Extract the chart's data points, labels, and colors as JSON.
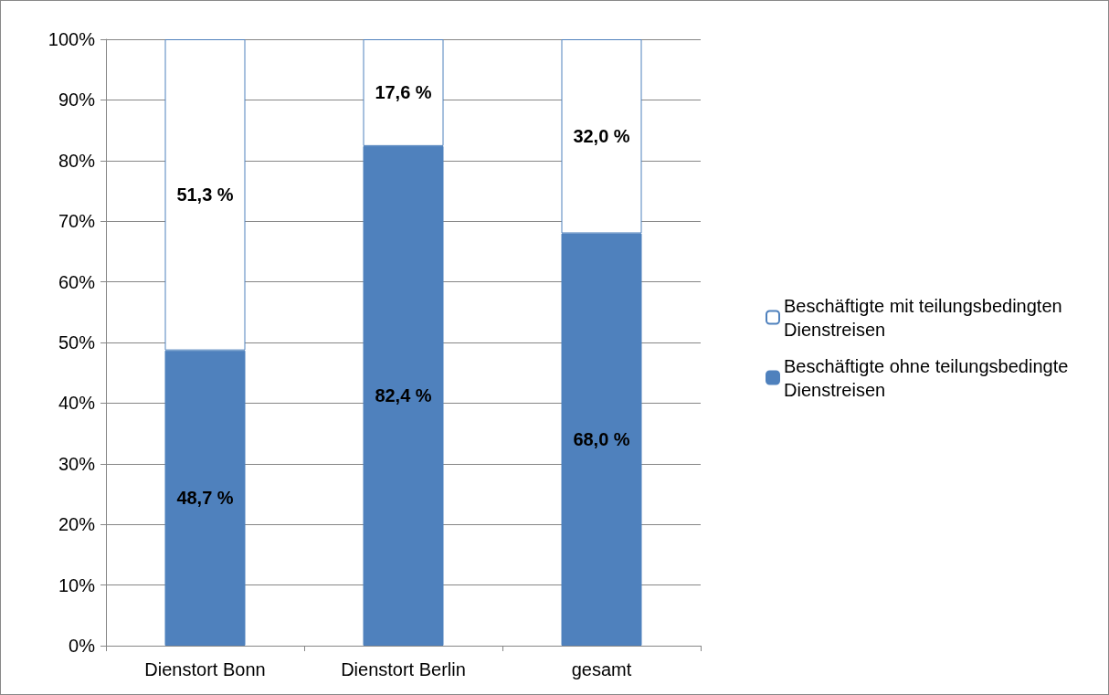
{
  "chart_data": {
    "type": "bar",
    "stacked": true,
    "categories": [
      "Dienstort Bonn",
      "Dienstort Berlin",
      "gesamt"
    ],
    "series": [
      {
        "name": "Beschäftigte ohne teilungsbedingte Dienstreisen",
        "color": "#4f81bd",
        "values": [
          48.7,
          82.4,
          68.0
        ],
        "value_labels": [
          "48,7 %",
          "82,4 %",
          "68,0 %"
        ]
      },
      {
        "name": "Beschäftigte mit teilungsbedingten Dienstreisen",
        "color": "#ffffff",
        "values": [
          51.3,
          17.6,
          32.0
        ],
        "value_labels": [
          "51,3 %",
          "17,6 %",
          "32,0 %"
        ]
      }
    ],
    "ylim": [
      0,
      100
    ],
    "yticks": [
      {
        "value": 0,
        "label": "0%"
      },
      {
        "value": 10,
        "label": "10%"
      },
      {
        "value": 20,
        "label": "20%"
      },
      {
        "value": 30,
        "label": "30%"
      },
      {
        "value": 40,
        "label": "40%"
      },
      {
        "value": 50,
        "label": "50%"
      },
      {
        "value": 60,
        "label": "60%"
      },
      {
        "value": 70,
        "label": "70%"
      },
      {
        "value": 80,
        "label": "80%"
      },
      {
        "value": 90,
        "label": "90%"
      },
      {
        "value": 100,
        "label": "100%"
      }
    ],
    "grid": "y",
    "legend": "right"
  }
}
